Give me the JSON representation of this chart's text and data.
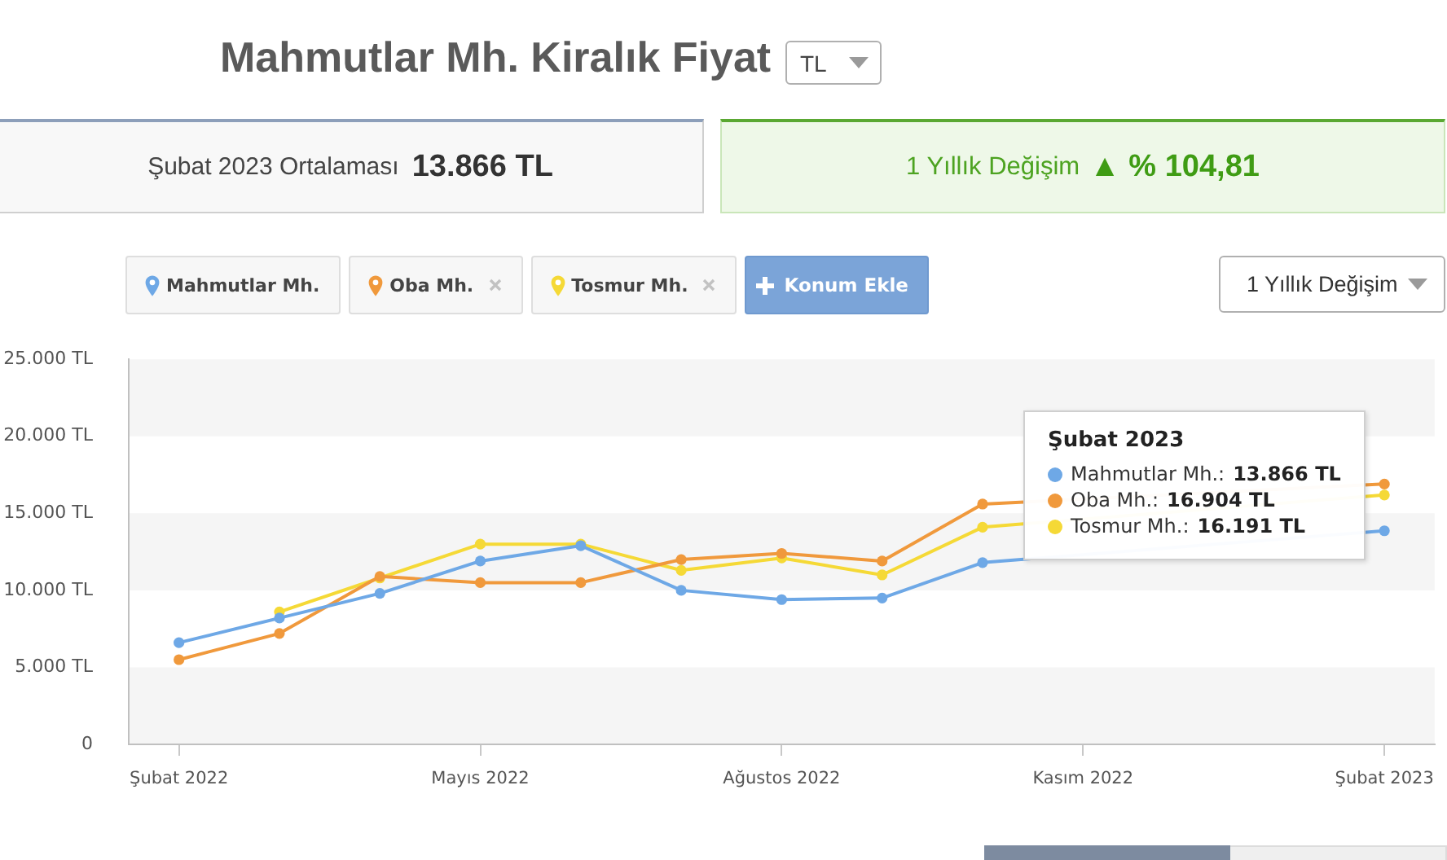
{
  "chart_data": {
    "type": "line",
    "title": "Mahmutlar Mh. Kiralık Fiyat",
    "categories": [
      "Şubat 2022",
      null,
      null,
      "Mayıs 2022",
      null,
      null,
      "Ağustos 2022",
      null,
      null,
      "Kasım 2022",
      null,
      null,
      "Şubat 2023"
    ],
    "series": [
      {
        "name": "Mahmutlar Mh.",
        "color": "#6ea8e6",
        "values": [
          6600,
          8200,
          9800,
          11900,
          12900,
          10000,
          9400,
          9500,
          11800,
          null,
          null,
          null,
          13866
        ]
      },
      {
        "name": "Oba Mh.",
        "color": "#f0993c",
        "values": [
          5500,
          7200,
          10900,
          10500,
          10500,
          12000,
          12400,
          11900,
          15600,
          null,
          null,
          null,
          16904
        ]
      },
      {
        "name": "Tosmur Mh.",
        "color": "#f5d936",
        "values": [
          null,
          8600,
          10800,
          13000,
          13000,
          11300,
          12100,
          11000,
          14100,
          null,
          null,
          null,
          16191
        ]
      }
    ],
    "ylim": [
      0,
      25000
    ],
    "yticks": [
      0,
      {
        "value": 5000,
        "label": "5.000 TL"
      },
      {
        "value": 10000,
        "label": "10.000 TL"
      },
      {
        "value": 15000,
        "label": "15.000 TL"
      },
      {
        "value": 20000,
        "label": "20.000 TL"
      },
      {
        "value": 25000,
        "label": "25.000 TL"
      }
    ],
    "bands": [
      {
        "axis": "y",
        "from": 0,
        "to": 5000,
        "color": "#f5f5f5"
      },
      {
        "axis": "y",
        "from": 10000,
        "to": 15000,
        "color": "#f5f5f5"
      },
      {
        "axis": "y",
        "from": 20000,
        "to": 25000,
        "color": "#f5f5f5"
      }
    ],
    "legend": "top left",
    "marker": "circle",
    "annotations": [
      "TL",
      "Şubat 2023 Ortalaması",
      "13.866 TL",
      "1 Yıllık Değişim",
      "▲ % 104,81",
      "Konum Ekle",
      "1 Yıllık Değişim",
      "Şubat 2023",
      "Mahmutlar Mh.: 13.866 TL",
      "Oba Mh.: 16.904 TL",
      "Tosmur Mh.: 16.191 TL"
    ]
  }
}
